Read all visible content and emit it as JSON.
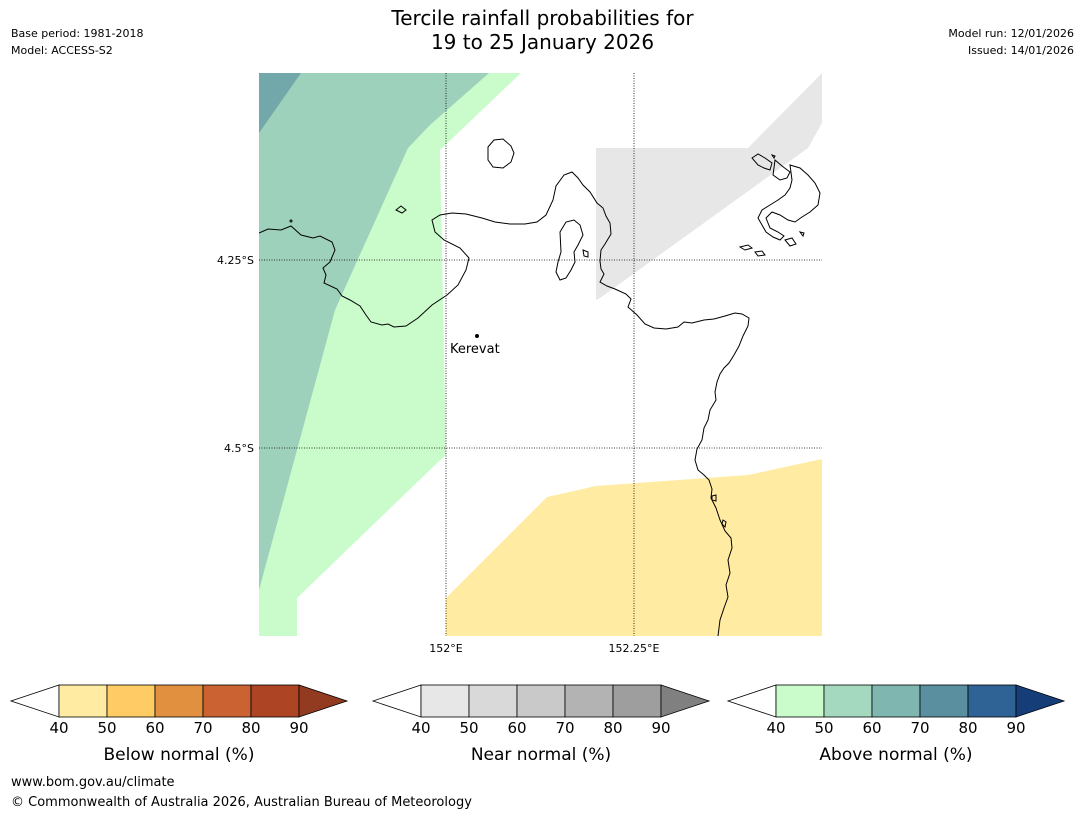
{
  "header": {
    "title_line1": "Tercile rainfall probabilities for",
    "title_line2": "19 to 25 January 2026",
    "base_period": "Base period: 1981-2018",
    "model": "Model: ACCESS-S2",
    "model_run": "Model run: 12/01/2026",
    "issued": "Issued: 14/01/2026"
  },
  "map": {
    "lat_labels": [
      "4.25°S",
      "4.5°S"
    ],
    "lon_labels": [
      "152°E",
      "152.25°E"
    ],
    "place": "Kerevat",
    "colors": {
      "above_50": "#9dd1bb",
      "above_40": "#c9fbcb",
      "above_60": "#72a8aa",
      "near_40": "#e7e7e7",
      "below_40": "#ffeca2"
    }
  },
  "legends": [
    {
      "title": "Below normal (%)",
      "ticks": [
        "40",
        "50",
        "60",
        "70",
        "80",
        "90"
      ],
      "colors": [
        "#ffeca2",
        "#ffcb65",
        "#e0903f",
        "#ca6232",
        "#ad4424"
      ],
      "under": "#ffffff",
      "over": "#923b20"
    },
    {
      "title": "Near normal (%)",
      "ticks": [
        "40",
        "50",
        "60",
        "70",
        "80",
        "90"
      ],
      "colors": [
        "#e7e7e7",
        "#d9d9d9",
        "#c9c9c9",
        "#b3b3b3",
        "#9e9e9e"
      ],
      "under": "#ffffff",
      "over": "#808080"
    },
    {
      "title": "Above normal (%)",
      "ticks": [
        "40",
        "50",
        "60",
        "70",
        "80",
        "90"
      ],
      "colors": [
        "#c9fbcb",
        "#a4d9bf",
        "#7fb6b0",
        "#5a8f9f",
        "#2f6395"
      ],
      "under": "#ffffff",
      "over": "#153e79"
    }
  ],
  "footer": {
    "url": "www.bom.gov.au/climate",
    "copyright": "© Commonwealth of Australia 2026, Australian Bureau of Meteorology"
  }
}
